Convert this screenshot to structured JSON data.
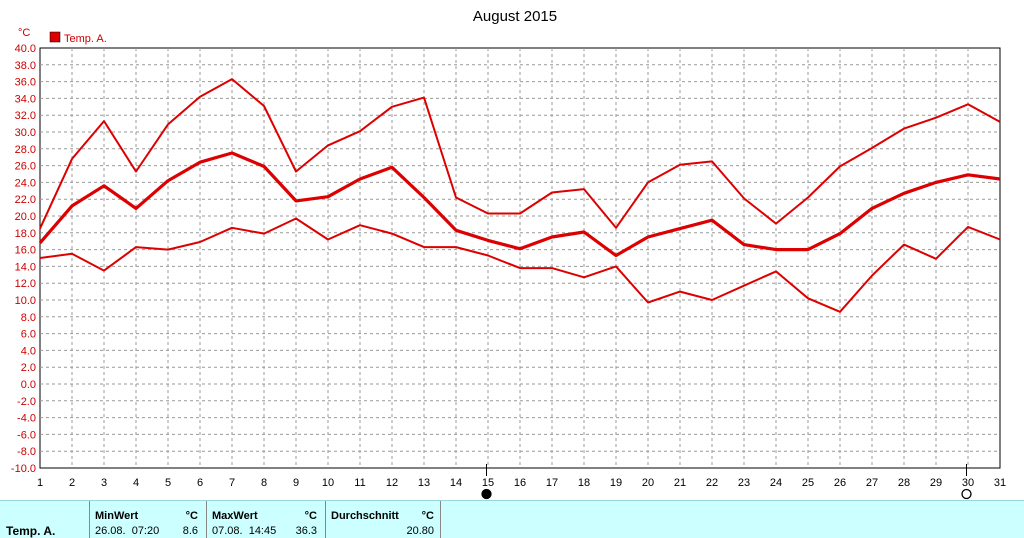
{
  "chart_data": {
    "type": "line",
    "title": "August 2015",
    "unit": "°C",
    "legend": {
      "label": "Temp. A.",
      "position": "top-left",
      "color": "#dd0000"
    },
    "x": [
      1,
      2,
      3,
      4,
      5,
      6,
      7,
      8,
      9,
      10,
      11,
      12,
      13,
      14,
      15,
      16,
      17,
      18,
      19,
      20,
      21,
      22,
      23,
      24,
      25,
      26,
      27,
      28,
      29,
      30,
      31
    ],
    "xlim": [
      1,
      31
    ],
    "ylim": [
      -10,
      40
    ],
    "y_ticks": [
      "-10.0",
      "-8.0",
      "-6.0",
      "-4.0",
      "-2.0",
      "0.0",
      "2.0",
      "4.0",
      "6.0",
      "8.0",
      "10.0",
      "12.0",
      "14.0",
      "16.0",
      "18.0",
      "20.0",
      "22.0",
      "24.0",
      "26.0",
      "28.0",
      "30.0",
      "32.0",
      "34.0",
      "36.0",
      "38.0",
      "40.0"
    ],
    "x_ticks": [
      "1",
      "2",
      "3",
      "4",
      "5",
      "6",
      "7",
      "8",
      "9",
      "10",
      "11",
      "12",
      "13",
      "14",
      "15",
      "16",
      "17",
      "18",
      "19",
      "20",
      "21",
      "22",
      "23",
      "24",
      "25",
      "26",
      "27",
      "28",
      "29",
      "30",
      "31"
    ],
    "grid": true,
    "series_color": "#dd0000",
    "series": [
      {
        "values": [
          18.5,
          26.8,
          31.3,
          25.3,
          30.9,
          34.2,
          36.3,
          33.1,
          25.3,
          28.4,
          30.1,
          33.0,
          34.1,
          22.2,
          20.3,
          20.3,
          22.8,
          23.2,
          18.6,
          24.0,
          26.1,
          26.5,
          22.1,
          19.1,
          22.2,
          25.9,
          28.1,
          30.4,
          31.7,
          33.3,
          31.2
        ]
      },
      {
        "values": [
          16.8,
          21.2,
          23.6,
          20.9,
          24.2,
          26.4,
          27.5,
          25.9,
          21.8,
          22.3,
          24.4,
          25.8,
          22.2,
          18.3,
          17.1,
          16.1,
          17.5,
          18.1,
          15.3,
          17.5,
          18.5,
          19.5,
          16.6,
          16.0,
          16.0,
          17.9,
          20.9,
          22.7,
          24.0,
          24.9,
          24.4
        ]
      },
      {
        "values": [
          15.0,
          15.5,
          13.5,
          16.3,
          16.0,
          16.9,
          18.6,
          17.9,
          19.7,
          17.2,
          18.9,
          17.9,
          16.3,
          16.3,
          15.3,
          13.8,
          13.8,
          12.7,
          14.0,
          9.7,
          11.0,
          10.0,
          11.7,
          13.4,
          10.2,
          8.6,
          12.9,
          16.6,
          14.9,
          18.7,
          17.2
        ]
      }
    ],
    "markers": [
      {
        "shape": "filled-circle",
        "day": 15
      },
      {
        "shape": "open-circle",
        "day": 30
      }
    ]
  },
  "stats": {
    "series_label": "Temp. A.",
    "min": {
      "header": "MinWert",
      "unit": "°C",
      "datetime": "26.08.  07:20",
      "value": "8.6"
    },
    "max": {
      "header": "MaxWert",
      "unit": "°C",
      "datetime": "07.08.  14:45",
      "value": "36.3"
    },
    "avg": {
      "header": "Durchschnitt",
      "unit": "°C",
      "value": "20.80"
    }
  }
}
